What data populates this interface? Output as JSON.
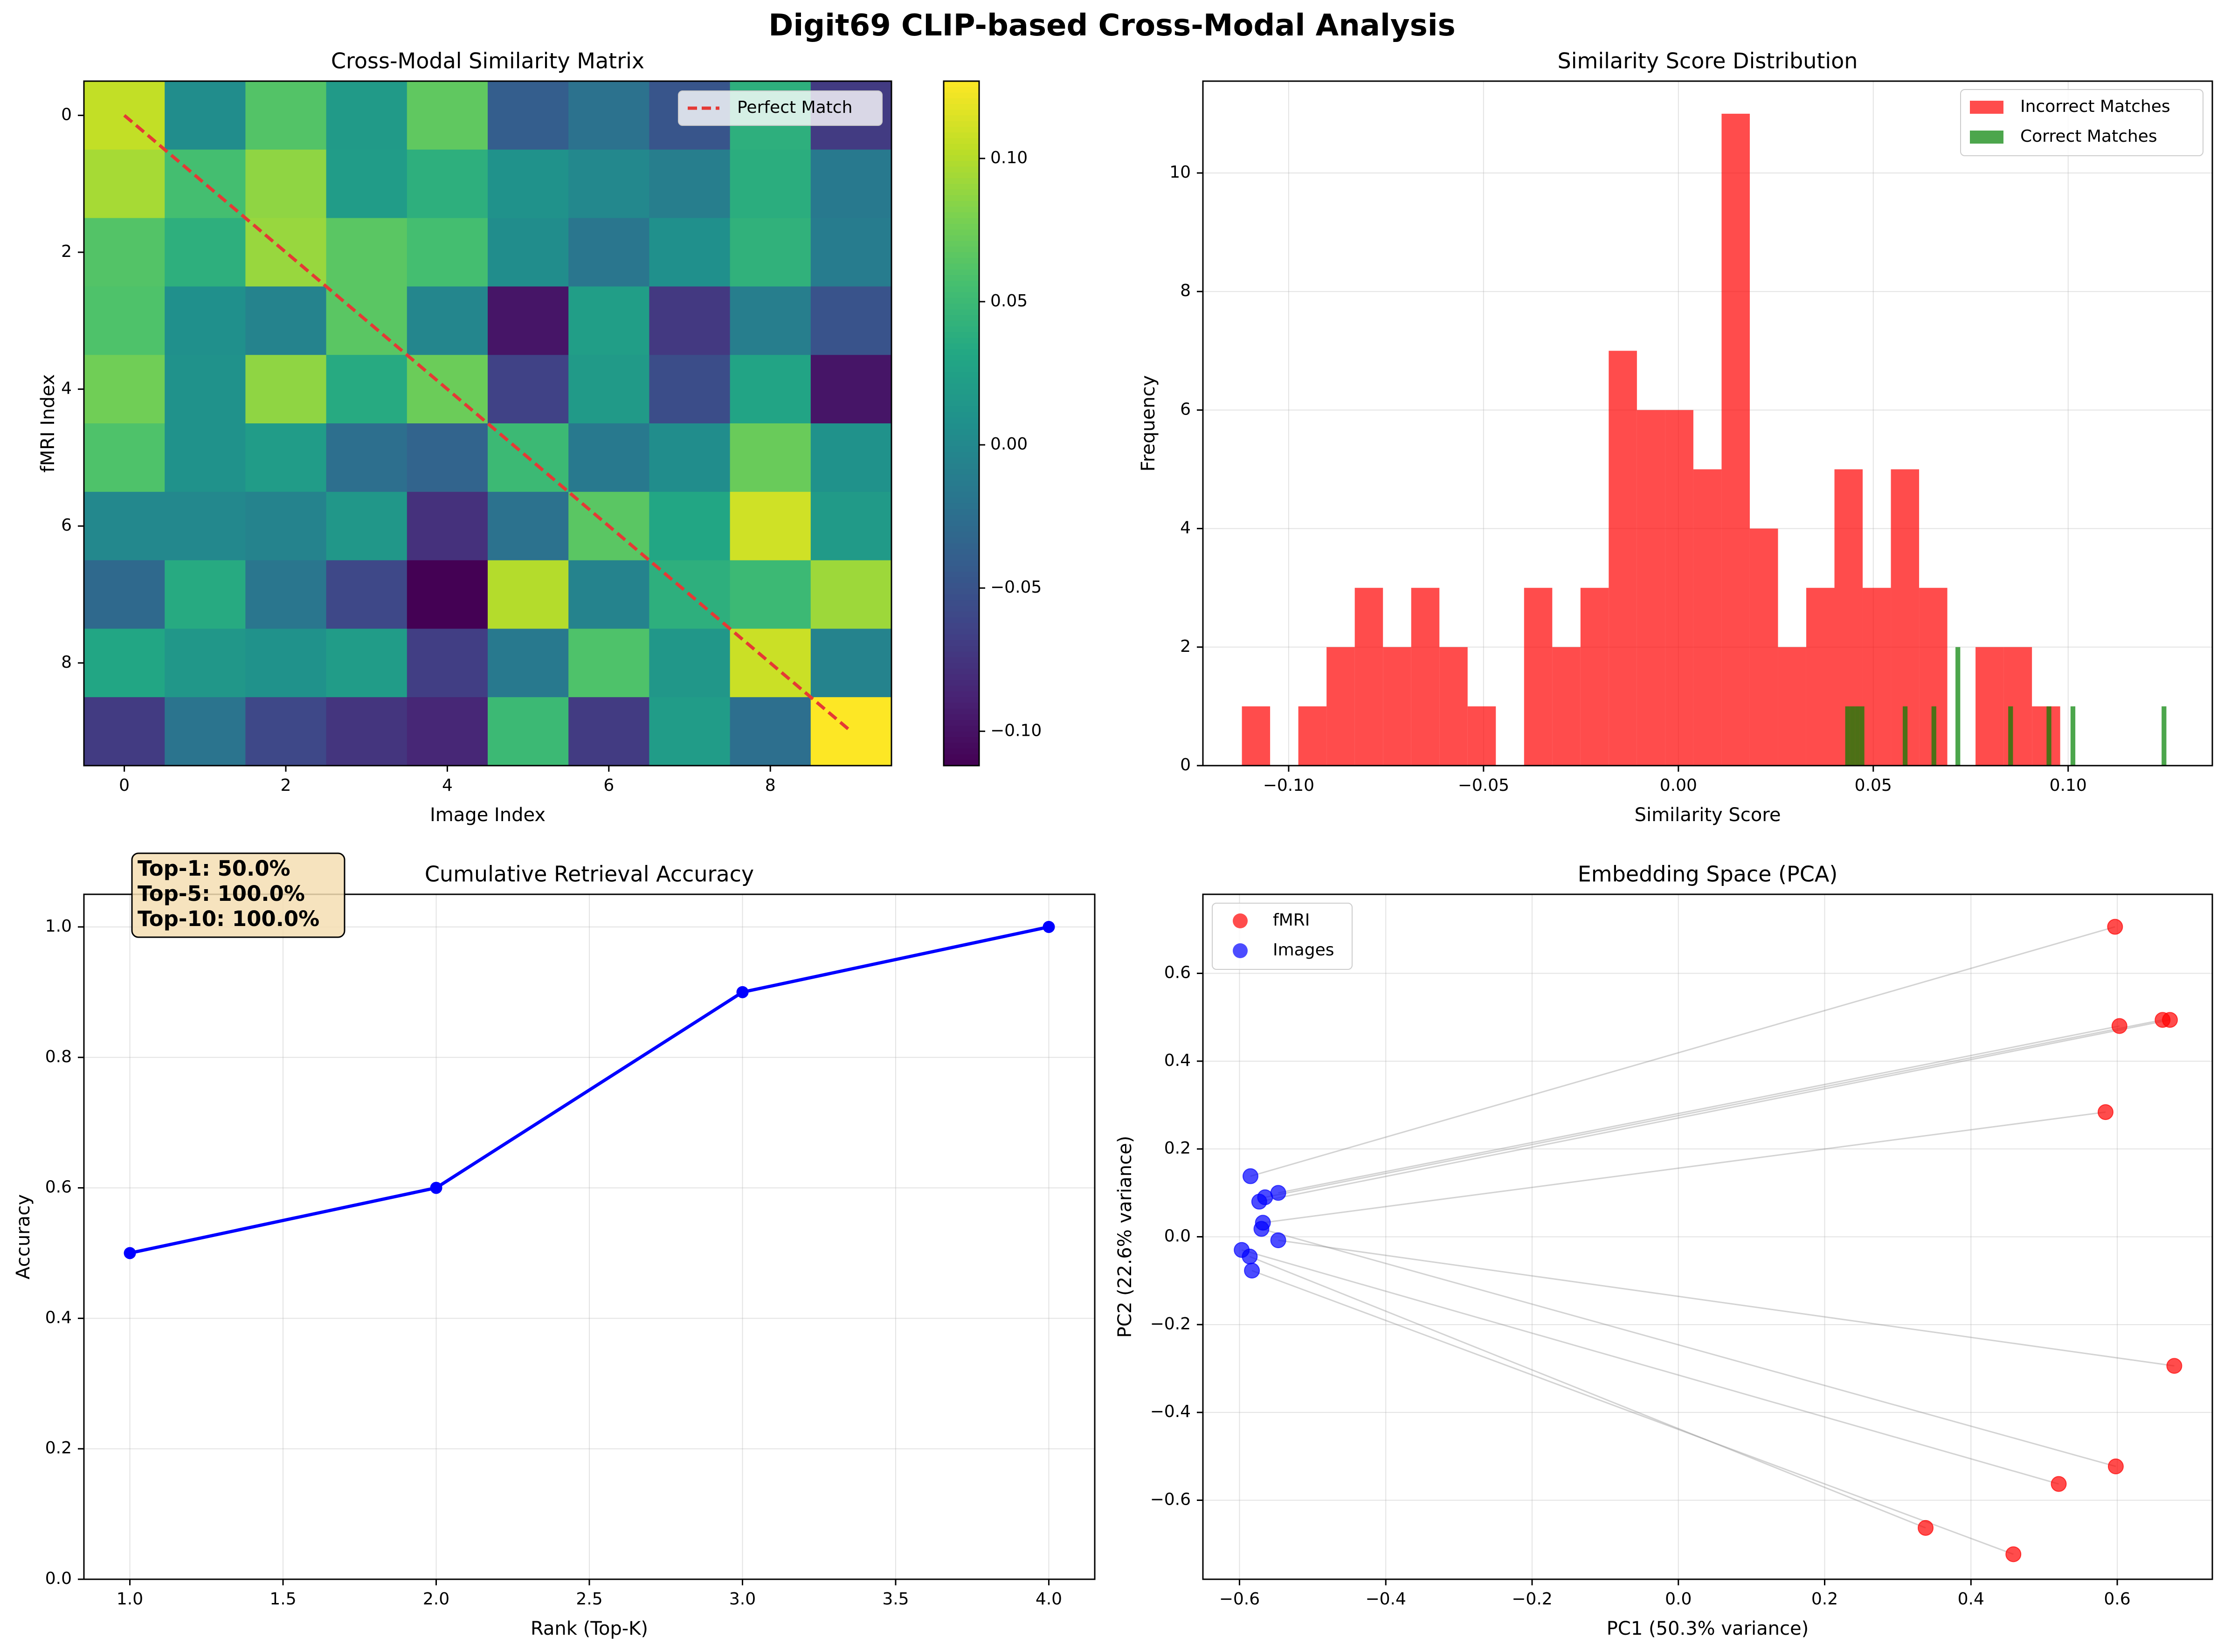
{
  "suptitle": "Digit69 CLIP-based Cross-Modal Analysis",
  "chart_data": [
    {
      "type": "heatmap",
      "title": "Cross-Modal Similarity Matrix",
      "xlabel": "Image Index",
      "ylabel": "fMRI Index",
      "xticks": [
        "0",
        "2",
        "4",
        "6",
        "8"
      ],
      "yticks": [
        "0",
        "2",
        "4",
        "6",
        "8"
      ],
      "colormap": "viridis",
      "vmin": -0.112,
      "vmax": 0.127,
      "colorbar_ticks": [
        "−0.10",
        "−0.05",
        "0.00",
        "0.05",
        "0.10"
      ],
      "matrix": [
        [
          0.105,
          0.005,
          0.062,
          0.018,
          0.068,
          -0.04,
          -0.022,
          -0.048,
          0.04,
          -0.07
        ],
        [
          0.095,
          0.055,
          0.087,
          0.02,
          0.04,
          0.01,
          0.0,
          -0.01,
          0.038,
          -0.015
        ],
        [
          0.062,
          0.04,
          0.09,
          0.065,
          0.055,
          0.005,
          -0.018,
          0.008,
          0.042,
          -0.012
        ],
        [
          0.06,
          0.008,
          -0.005,
          0.065,
          -0.002,
          -0.098,
          0.022,
          -0.072,
          -0.01,
          -0.05
        ],
        [
          0.075,
          0.01,
          0.087,
          0.035,
          0.073,
          -0.065,
          0.018,
          -0.055,
          0.028,
          -0.098
        ],
        [
          0.06,
          0.01,
          0.02,
          -0.025,
          -0.035,
          0.05,
          -0.015,
          0.005,
          0.072,
          0.01
        ],
        [
          0.0,
          0.0,
          -0.005,
          0.015,
          -0.078,
          -0.022,
          0.065,
          0.03,
          0.11,
          0.018
        ],
        [
          -0.03,
          0.035,
          -0.018,
          -0.06,
          -0.112,
          0.1,
          -0.005,
          0.04,
          0.05,
          0.092
        ],
        [
          0.03,
          0.015,
          0.01,
          0.02,
          -0.068,
          -0.015,
          0.06,
          0.015,
          0.108,
          -0.005
        ],
        [
          -0.07,
          -0.02,
          -0.06,
          -0.075,
          -0.085,
          0.05,
          -0.07,
          0.02,
          -0.025,
          0.127
        ]
      ],
      "diagonal_line": {
        "label": "Perfect Match",
        "color": "#e53935",
        "style": "dashed"
      },
      "legend_position": "upper right"
    },
    {
      "type": "bar",
      "subtype": "histogram",
      "title": "Similarity Score Distribution",
      "xlabel": "Similarity Score",
      "ylabel": "Frequency",
      "xlim": [
        -0.122,
        0.137
      ],
      "ylim": [
        0,
        11.55
      ],
      "xticks": [
        -0.1,
        -0.05,
        0.0,
        0.05,
        0.1
      ],
      "xtick_labels": [
        "−0.10",
        "−0.05",
        "0.00",
        "0.05",
        "0.10"
      ],
      "yticks": [
        0,
        2,
        4,
        6,
        8,
        10
      ],
      "grid": true,
      "legend_position": "upper right",
      "series": [
        {
          "name": "Incorrect Matches",
          "color": "#ff0000",
          "bin_start": -0.112,
          "bin_width": 0.00724,
          "counts": [
            1,
            0,
            1,
            2,
            3,
            2,
            3,
            2,
            1,
            0,
            3,
            2,
            3,
            7,
            6,
            6,
            5,
            11,
            4,
            2,
            3,
            5,
            3,
            5,
            3,
            0,
            2,
            2,
            1,
            0,
            0,
            0,
            0
          ]
        },
        {
          "name": "Correct Matches",
          "color": "#008000",
          "bin_start": 0.0428,
          "bin_width": 0.00123,
          "counts": [
            1,
            1,
            1,
            1,
            0,
            0,
            0,
            0,
            0,
            0,
            0,
            0,
            1,
            0,
            0,
            0,
            0,
            0,
            1,
            0,
            0,
            0,
            0,
            2,
            0,
            0,
            0,
            0,
            0,
            0,
            0,
            0,
            0,
            0,
            1,
            0,
            0,
            0,
            0,
            0,
            0,
            0,
            1,
            0,
            0,
            0,
            0,
            1,
            0,
            0,
            0,
            0,
            0,
            0,
            0,
            0,
            0,
            0,
            0,
            0,
            0,
            0,
            0,
            0,
            0,
            0,
            1
          ]
        }
      ]
    },
    {
      "type": "line",
      "title": "Cumulative Retrieval Accuracy",
      "xlabel": "Rank (Top-K)",
      "ylabel": "Accuracy",
      "x": [
        1,
        2,
        3,
        4
      ],
      "y": [
        0.5,
        0.6,
        0.9,
        1.0
      ],
      "xlim": [
        0.85,
        4.15
      ],
      "ylim": [
        0,
        1.05
      ],
      "xticks": [
        1.0,
        1.5,
        2.0,
        2.5,
        3.0,
        3.5,
        4.0
      ],
      "xtick_labels": [
        "1.0",
        "1.5",
        "2.0",
        "2.5",
        "3.0",
        "3.5",
        "4.0"
      ],
      "yticks": [
        0.0,
        0.2,
        0.4,
        0.6,
        0.8,
        1.0
      ],
      "ytick_labels": [
        "0.0",
        "0.2",
        "0.4",
        "0.6",
        "0.8",
        "1.0"
      ],
      "color": "#0000ff",
      "grid": true,
      "annotation": [
        "Top-1: 50.0%",
        "Top-5: 100.0%",
        "Top-10: 100.0%"
      ]
    },
    {
      "type": "scatter",
      "title": "Embedding Space (PCA)",
      "xlabel": "PC1 (50.3% variance)",
      "ylabel": "PC2 (22.6% variance)",
      "xlim": [
        -0.65,
        0.73
      ],
      "ylim": [
        -0.78,
        0.78
      ],
      "xticks": [
        -0.6,
        -0.4,
        -0.2,
        0.0,
        0.2,
        0.4,
        0.6
      ],
      "xtick_labels": [
        "−0.6",
        "−0.4",
        "−0.2",
        "0.0",
        "0.2",
        "0.4",
        "0.6"
      ],
      "yticks": [
        -0.6,
        -0.4,
        -0.2,
        0.0,
        0.2,
        0.4,
        0.6
      ],
      "ytick_labels": [
        "−0.6",
        "−0.4",
        "−0.2",
        "0.0",
        "0.2",
        "0.4",
        "0.6"
      ],
      "grid": true,
      "legend_position": "upper left",
      "series": [
        {
          "name": "fMRI",
          "color": "#ff0000",
          "points": [
            [
              0.597,
              0.706
            ],
            [
              0.603,
              0.48
            ],
            [
              0.662,
              0.494
            ],
            [
              0.672,
              0.494
            ],
            [
              0.584,
              0.284
            ],
            [
              0.678,
              -0.294
            ],
            [
              0.598,
              -0.523
            ],
            [
              0.52,
              -0.563
            ],
            [
              0.338,
              -0.663
            ],
            [
              0.458,
              -0.723
            ]
          ]
        },
        {
          "name": "Images",
          "color": "#0000ff",
          "points": [
            [
              -0.585,
              0.138
            ],
            [
              -0.547,
              0.1
            ],
            [
              -0.565,
              0.09
            ],
            [
              -0.573,
              0.08
            ],
            [
              -0.568,
              0.032
            ],
            [
              -0.57,
              0.018
            ],
            [
              -0.547,
              -0.008
            ],
            [
              -0.597,
              -0.03
            ],
            [
              -0.586,
              -0.045
            ],
            [
              -0.583,
              -0.077
            ]
          ]
        }
      ],
      "connections": [
        [
          0,
          0
        ],
        [
          1,
          1
        ],
        [
          2,
          2
        ],
        [
          3,
          3
        ],
        [
          4,
          4
        ],
        [
          5,
          6
        ],
        [
          6,
          5
        ],
        [
          7,
          7
        ],
        [
          8,
          8
        ],
        [
          9,
          9
        ]
      ]
    }
  ]
}
